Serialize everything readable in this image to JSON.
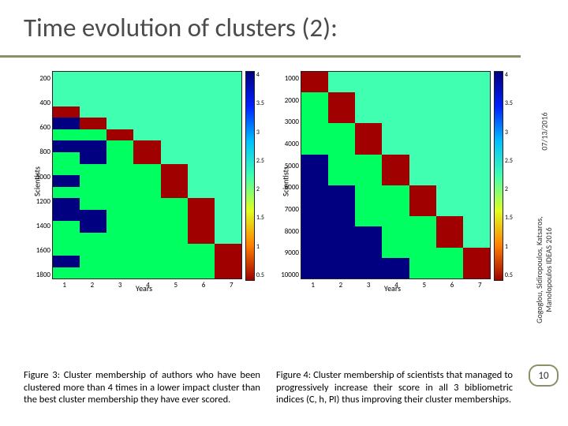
{
  "title_bar": {
    "text": "Time evolution of clusters (2):",
    "text_color": "#4b4b4b",
    "underline_color": "#8a9166",
    "fontsize": 33
  },
  "side": {
    "date": "07/13/2016",
    "authors_line1": "Gogoglou, Sidiropoulos, Katsaros,",
    "authors_line2": "Manolopoulos   IDEAS 2016"
  },
  "page_number": "10",
  "colors": {
    "bg_white": "#ffffff",
    "axis_label": "#000000"
  },
  "colormap": {
    "stops": [
      "#000080",
      "#0020ff",
      "#00c0ff",
      "#40ffb0",
      "#e0ff20",
      "#ff8000",
      "#a00000"
    ],
    "ticks": [
      "4",
      "3.5",
      "3",
      "2.5",
      "2",
      "1.5",
      "1",
      "0.5"
    ]
  },
  "chart_left": {
    "ylabel": "Scientists",
    "xlabel": "Years",
    "yticks": [
      "200",
      "400",
      "600",
      "800",
      "1000",
      "1200",
      "1400",
      "1600",
      "1800"
    ],
    "xticks": [
      "1",
      "2",
      "3",
      "4",
      "5",
      "6",
      "7"
    ],
    "cells": [
      [
        "#40ffb0",
        "#40ffb0",
        "#40ffb0",
        "#40ffb0",
        "#40ffb0",
        "#40ffb0",
        "#40ffb0"
      ],
      [
        "#40ffb0",
        "#40ffb0",
        "#40ffb0",
        "#40ffb0",
        "#40ffb0",
        "#40ffb0",
        "#40ffb0"
      ],
      [
        "#40ffb0",
        "#40ffb0",
        "#40ffb0",
        "#40ffb0",
        "#40ffb0",
        "#40ffb0",
        "#40ffb0"
      ],
      [
        "#a00000",
        "#40ffb0",
        "#40ffb0",
        "#40ffb0",
        "#40ffb0",
        "#40ffb0",
        "#40ffb0"
      ],
      [
        "#000080",
        "#a00000",
        "#40ffb0",
        "#40ffb0",
        "#40ffb0",
        "#40ffb0",
        "#40ffb0"
      ],
      [
        "#00ff60",
        "#00ff60",
        "#a00000",
        "#40ffb0",
        "#40ffb0",
        "#40ffb0",
        "#40ffb0"
      ],
      [
        "#000080",
        "#000080",
        "#00ff60",
        "#a00000",
        "#40ffb0",
        "#40ffb0",
        "#40ffb0"
      ],
      [
        "#00ff60",
        "#000080",
        "#00ff60",
        "#a00000",
        "#40ffb0",
        "#40ffb0",
        "#40ffb0"
      ],
      [
        "#00ff60",
        "#00ff60",
        "#00ff60",
        "#00ff60",
        "#a00000",
        "#40ffb0",
        "#40ffb0"
      ],
      [
        "#000080",
        "#00ff60",
        "#00ff60",
        "#00ff60",
        "#a00000",
        "#40ffb0",
        "#40ffb0"
      ],
      [
        "#00ff60",
        "#00ff60",
        "#00ff60",
        "#00ff60",
        "#a00000",
        "#40ffb0",
        "#40ffb0"
      ],
      [
        "#000080",
        "#00ff60",
        "#00ff60",
        "#00ff60",
        "#00ff60",
        "#a00000",
        "#40ffb0"
      ],
      [
        "#000080",
        "#000080",
        "#00ff60",
        "#00ff60",
        "#00ff60",
        "#a00000",
        "#40ffb0"
      ],
      [
        "#00ff60",
        "#000080",
        "#00ff60",
        "#00ff60",
        "#00ff60",
        "#a00000",
        "#40ffb0"
      ],
      [
        "#00ff60",
        "#00ff60",
        "#00ff60",
        "#00ff60",
        "#00ff60",
        "#a00000",
        "#40ffb0"
      ],
      [
        "#00ff60",
        "#00ff60",
        "#00ff60",
        "#00ff60",
        "#00ff60",
        "#00ff60",
        "#a00000"
      ],
      [
        "#000080",
        "#00ff60",
        "#00ff60",
        "#00ff60",
        "#00ff60",
        "#00ff60",
        "#a00000"
      ],
      [
        "#00ff60",
        "#00ff60",
        "#00ff60",
        "#00ff60",
        "#00ff60",
        "#00ff60",
        "#a00000"
      ]
    ]
  },
  "chart_right": {
    "ylabel": "Scientists",
    "xlabel": "Years",
    "yticks": [
      "1000",
      "2000",
      "3000",
      "4000",
      "5000",
      "6000",
      "7000",
      "8000",
      "9000",
      "10000"
    ],
    "xticks": [
      "1",
      "2",
      "3",
      "4",
      "5",
      "6",
      "7"
    ],
    "cells": [
      [
        "#a00000",
        "#40ffb0",
        "#40ffb0",
        "#40ffb0",
        "#40ffb0",
        "#40ffb0",
        "#40ffb0"
      ],
      [
        "#a00000",
        "#40ffb0",
        "#40ffb0",
        "#40ffb0",
        "#40ffb0",
        "#40ffb0",
        "#40ffb0"
      ],
      [
        "#00ff60",
        "#a00000",
        "#40ffb0",
        "#40ffb0",
        "#40ffb0",
        "#40ffb0",
        "#40ffb0"
      ],
      [
        "#00ff60",
        "#a00000",
        "#40ffb0",
        "#40ffb0",
        "#40ffb0",
        "#40ffb0",
        "#40ffb0"
      ],
      [
        "#00ff60",
        "#a00000",
        "#40ffb0",
        "#40ffb0",
        "#40ffb0",
        "#40ffb0",
        "#40ffb0"
      ],
      [
        "#00ff60",
        "#00ff60",
        "#a00000",
        "#40ffb0",
        "#40ffb0",
        "#40ffb0",
        "#40ffb0"
      ],
      [
        "#00ff60",
        "#00ff60",
        "#a00000",
        "#40ffb0",
        "#40ffb0",
        "#40ffb0",
        "#40ffb0"
      ],
      [
        "#00ff60",
        "#00ff60",
        "#a00000",
        "#40ffb0",
        "#40ffb0",
        "#40ffb0",
        "#40ffb0"
      ],
      [
        "#000080",
        "#00ff60",
        "#00ff60",
        "#a00000",
        "#40ffb0",
        "#40ffb0",
        "#40ffb0"
      ],
      [
        "#000080",
        "#00ff60",
        "#00ff60",
        "#a00000",
        "#40ffb0",
        "#40ffb0",
        "#40ffb0"
      ],
      [
        "#000080",
        "#00ff60",
        "#00ff60",
        "#a00000",
        "#40ffb0",
        "#40ffb0",
        "#40ffb0"
      ],
      [
        "#000080",
        "#000080",
        "#00ff60",
        "#00ff60",
        "#a00000",
        "#40ffb0",
        "#40ffb0"
      ],
      [
        "#000080",
        "#000080",
        "#00ff60",
        "#00ff60",
        "#a00000",
        "#40ffb0",
        "#40ffb0"
      ],
      [
        "#000080",
        "#000080",
        "#00ff60",
        "#00ff60",
        "#a00000",
        "#40ffb0",
        "#40ffb0"
      ],
      [
        "#000080",
        "#000080",
        "#00ff60",
        "#00ff60",
        "#00ff60",
        "#a00000",
        "#40ffb0"
      ],
      [
        "#000080",
        "#000080",
        "#000080",
        "#00ff60",
        "#00ff60",
        "#a00000",
        "#40ffb0"
      ],
      [
        "#000080",
        "#000080",
        "#000080",
        "#00ff60",
        "#00ff60",
        "#a00000",
        "#40ffb0"
      ],
      [
        "#000080",
        "#000080",
        "#000080",
        "#00ff60",
        "#00ff60",
        "#00ff60",
        "#a00000"
      ],
      [
        "#000080",
        "#000080",
        "#000080",
        "#000080",
        "#00ff60",
        "#00ff60",
        "#a00000"
      ],
      [
        "#000080",
        "#000080",
        "#000080",
        "#000080",
        "#00ff60",
        "#00ff60",
        "#a00000"
      ]
    ]
  },
  "captions": {
    "left": "Figure 3: Cluster membership of authors who have been clustered more than 4 times in a lower impact cluster than the best cluster membership they have ever scored.",
    "right": "Figure 4: Cluster membership of scientists that managed to progressively increase their score in all 3 bibliometric indices (C, h, PI) thus improving their cluster memberships."
  }
}
